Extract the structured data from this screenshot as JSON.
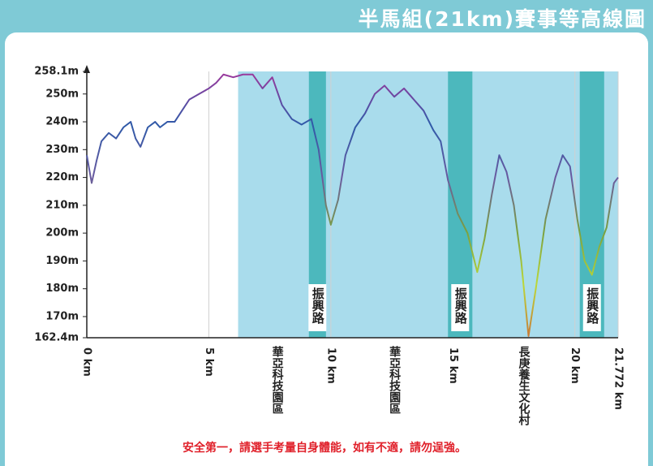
{
  "header": {
    "title": "半馬組(21km)賽事等高線圖"
  },
  "footer": {
    "note": "安全第一，請選手考量自身體能，如有不適，請勿逞強。"
  },
  "chart_data": {
    "type": "line",
    "x": [
      0,
      0.2,
      0.4,
      0.6,
      0.9,
      1.2,
      1.5,
      1.8,
      2.0,
      2.2,
      2.5,
      2.8,
      3.0,
      3.3,
      3.6,
      3.9,
      4.2,
      4.6,
      5.0,
      5.3,
      5.6,
      6.0,
      6.4,
      6.8,
      7.2,
      7.6,
      8.0,
      8.4,
      8.8,
      9.2,
      9.5,
      9.8,
      10.0,
      10.3,
      10.6,
      11.0,
      11.4,
      11.8,
      12.2,
      12.6,
      13.0,
      13.4,
      13.8,
      14.2,
      14.5,
      14.8,
      15.2,
      15.6,
      16.0,
      16.3,
      16.6,
      16.9,
      17.2,
      17.5,
      17.8,
      18.1,
      18.4,
      18.8,
      19.2,
      19.5,
      19.8,
      20.1,
      20.4,
      20.7,
      21.0,
      21.3,
      21.6,
      21.772
    ],
    "series": [
      {
        "colors": [
          "#a0389c",
          "#2f5aa8",
          "#6a5aa0",
          "#7aa040",
          "#bcd838",
          "#c87838"
        ],
        "values": [
          228,
          218,
          226,
          233,
          236,
          234,
          238,
          240,
          234,
          231,
          238,
          240,
          238,
          240,
          240,
          244,
          248,
          250,
          252,
          254,
          257,
          256,
          257,
          257,
          252,
          256,
          246,
          241,
          239,
          241,
          230,
          210,
          203,
          212,
          228,
          238,
          243,
          250,
          253,
          249,
          252,
          248,
          244,
          237,
          233,
          219,
          207,
          200,
          186,
          198,
          214,
          228,
          222,
          210,
          190,
          163,
          180,
          205,
          220,
          228,
          224,
          205,
          190,
          185,
          195,
          202,
          218,
          220
        ]
      }
    ],
    "xlim": [
      0,
      21.772
    ],
    "xticks": [
      {
        "value": 0,
        "label": "0 km"
      },
      {
        "value": 5,
        "label": "5 km"
      },
      {
        "value": 10,
        "label": "10 km"
      },
      {
        "value": 15,
        "label": "15 km"
      },
      {
        "value": 20,
        "label": "20 km"
      },
      {
        "value": 21.772,
        "label": "21.772 km"
      }
    ],
    "ylim": [
      162.4,
      258.1
    ],
    "yticks": [
      {
        "value": 162.4,
        "label": "162.4m"
      },
      {
        "value": 170,
        "label": "170m"
      },
      {
        "value": 180,
        "label": "180m"
      },
      {
        "value": 190,
        "label": "190m"
      },
      {
        "value": 200,
        "label": "200m"
      },
      {
        "value": 210,
        "label": "210m"
      },
      {
        "value": 220,
        "label": "220m"
      },
      {
        "value": 230,
        "label": "230m"
      },
      {
        "value": 240,
        "label": "240m"
      },
      {
        "value": 250,
        "label": "250m"
      },
      {
        "value": 258.1,
        "label": "258.1m"
      }
    ],
    "grid": true,
    "shade": {
      "start": 6.2,
      "end": 21.772,
      "color": "#a9dcec"
    },
    "roads": [
      {
        "start": 9.1,
        "end": 9.8,
        "label": "振興路"
      },
      {
        "start": 14.8,
        "end": 15.8,
        "label": "振興路"
      },
      {
        "start": 20.2,
        "end": 21.2,
        "label": "振興路"
      }
    ],
    "road_color": "#4cb8bd",
    "annotations": [
      {
        "x": 7.8,
        "label": "華亞科技園區"
      },
      {
        "x": 12.6,
        "label": "華亞科技園區"
      },
      {
        "x": 17.9,
        "label": "長庚養生文化村"
      }
    ]
  }
}
